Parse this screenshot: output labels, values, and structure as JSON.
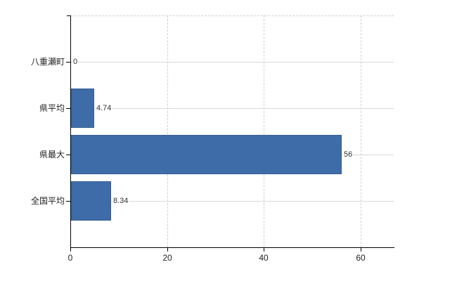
{
  "chart_data": {
    "type": "bar",
    "orientation": "horizontal",
    "title": "",
    "xlabel": "",
    "ylabel": "",
    "categories": [
      "八重瀬町",
      "県平均",
      "県最大",
      "全国平均"
    ],
    "values": [
      0,
      4.74,
      56,
      8.34
    ],
    "value_labels": [
      "0",
      "4.74",
      "56",
      "8.34"
    ],
    "x_ticks": [
      0,
      20,
      40,
      60
    ],
    "x_tick_labels": [
      "0",
      "20",
      "40",
      "60"
    ],
    "xlim": [
      0,
      66.9
    ],
    "grid": true,
    "legend": false
  },
  "colors": {
    "background": "#ffffff",
    "bar_fill": "#3E6CA8",
    "bar_border": "#35618F",
    "axis": "#000000",
    "row_gridline": "#d5dad3",
    "dashed_gridline": "#cfcfcf",
    "label_text": "#222222",
    "value_text": "#333333"
  }
}
